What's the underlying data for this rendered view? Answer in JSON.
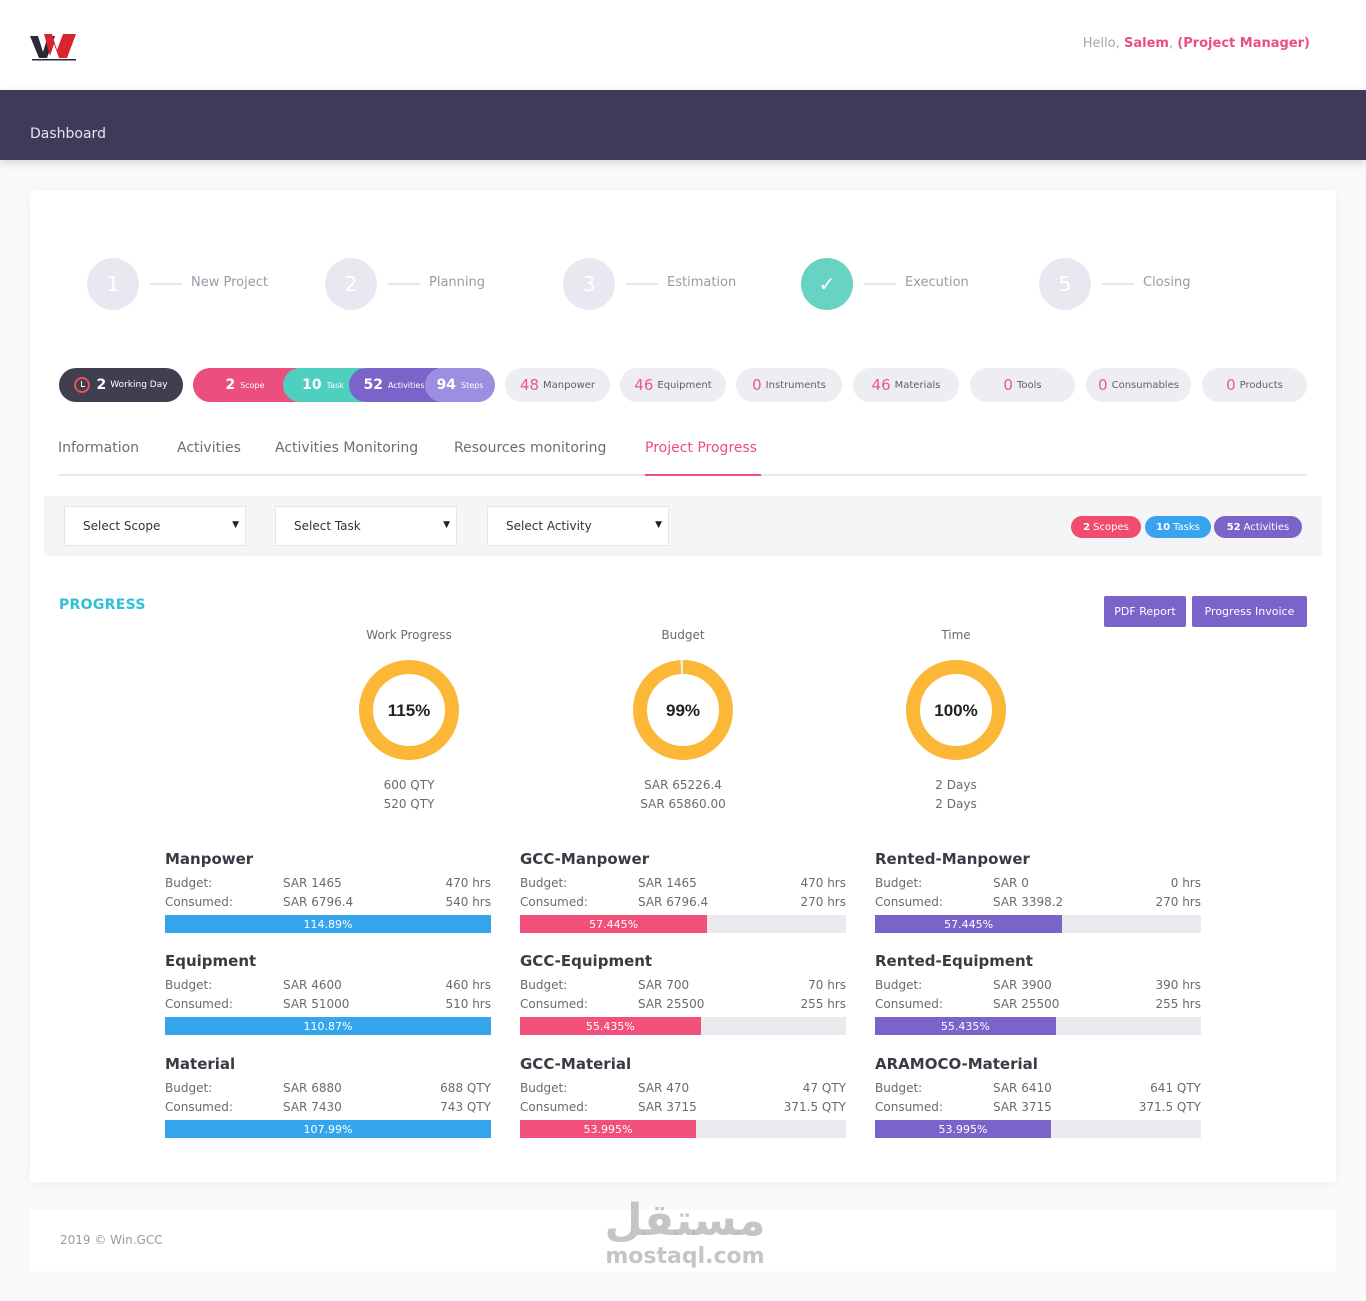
{
  "header": {
    "greeting": "Hello,",
    "user_name": "Salem",
    "separator": ",",
    "role": "(Project Manager)",
    "brand_colors": {
      "red": "#d9232d",
      "dark": "#2a2a35"
    }
  },
  "nav": {
    "dashboard": "Dashboard"
  },
  "stepper": [
    {
      "num": "1",
      "label": "New Project",
      "done": false
    },
    {
      "num": "2",
      "label": "Planning",
      "done": false
    },
    {
      "num": "3",
      "label": "Estimation",
      "done": false
    },
    {
      "num": "✓",
      "label": "Execution",
      "done": true
    },
    {
      "num": "5",
      "label": "Closing",
      "done": false
    }
  ],
  "summary": {
    "working_day": {
      "num": "2",
      "label": "Working Day"
    },
    "scope": {
      "num": "2",
      "label": "Scope",
      "color": "#ea4f7d"
    },
    "task": {
      "num": "10",
      "label": "Task",
      "color": "#4fcfbf"
    },
    "activities": {
      "num": "52",
      "label": "Activities",
      "color": "#7a63c9"
    },
    "steps": {
      "num": "94",
      "label": "Steps",
      "color": "#9d8ee0"
    },
    "resources": [
      {
        "num": "48",
        "label": "Manpower"
      },
      {
        "num": "46",
        "label": "Equipment"
      },
      {
        "num": "0",
        "label": "Instruments"
      },
      {
        "num": "46",
        "label": "Materials"
      },
      {
        "num": "0",
        "label": "Tools"
      },
      {
        "num": "0",
        "label": "Consumables"
      },
      {
        "num": "0",
        "label": "Products"
      }
    ]
  },
  "tabs": [
    {
      "label": "Information",
      "active": false
    },
    {
      "label": "Activities",
      "active": false
    },
    {
      "label": "Activities Monitoring",
      "active": false
    },
    {
      "label": "Resources monitoring",
      "active": false
    },
    {
      "label": "Project Progress",
      "active": true
    }
  ],
  "filters": {
    "scope": "Select Scope",
    "task": "Select Task",
    "activity": "Select Activity",
    "badges": [
      {
        "num": "2",
        "label": "Scopes",
        "color": "#ef4c6e"
      },
      {
        "num": "10",
        "label": "Tasks",
        "color": "#3aa3f0"
      },
      {
        "num": "52",
        "label": "Activities",
        "color": "#7a63c9"
      }
    ]
  },
  "progress": {
    "title": "PROGRESS",
    "pdf_report": "PDF Report",
    "progress_invoice": "Progress Invoice",
    "gauge_color": "#fbb735",
    "gauges": [
      {
        "title": "Work Progress",
        "value": "115%",
        "fraction": 1.0,
        "line1": "600 QTY",
        "line2": "520 QTY"
      },
      {
        "title": "Budget",
        "value": "99%",
        "fraction": 0.99,
        "line1": "SAR 65226.4",
        "line2": "SAR 65860.00"
      },
      {
        "title": "Time",
        "value": "100%",
        "fraction": 1.0,
        "line1": "2 Days",
        "line2": "2 Days"
      }
    ]
  },
  "resources_grid": [
    {
      "title": "Manpower",
      "budget_label": "Budget:",
      "budget_sar": "SAR 1465",
      "budget_qty": "470 hrs",
      "consumed_label": "Consumed:",
      "consumed_sar": "SAR 6796.4",
      "consumed_qty": "540 hrs",
      "percent": "114.89%",
      "fraction": 1.0,
      "color": "#35a6ee"
    },
    {
      "title": "GCC-Manpower",
      "budget_label": "Budget:",
      "budget_sar": "SAR 1465",
      "budget_qty": "470 hrs",
      "consumed_label": "Consumed:",
      "consumed_sar": "SAR 6796.4",
      "consumed_qty": "270 hrs",
      "percent": "57.445%",
      "fraction": 0.57445,
      "color": "#f0507a"
    },
    {
      "title": "Rented-Manpower",
      "budget_label": "Budget:",
      "budget_sar": "SAR 0",
      "budget_qty": "0 hrs",
      "consumed_label": "Consumed:",
      "consumed_sar": "SAR 3398.2",
      "consumed_qty": "270 hrs",
      "percent": "57.445%",
      "fraction": 0.57445,
      "color": "#7a63c9"
    },
    {
      "title": "Equipment",
      "budget_label": "Budget:",
      "budget_sar": "SAR 4600",
      "budget_qty": "460 hrs",
      "consumed_label": "Consumed:",
      "consumed_sar": "SAR 51000",
      "consumed_qty": "510 hrs",
      "percent": "110.87%",
      "fraction": 1.0,
      "color": "#35a6ee"
    },
    {
      "title": "GCC-Equipment",
      "budget_label": "Budget:",
      "budget_sar": "SAR 700",
      "budget_qty": "70 hrs",
      "consumed_label": "Consumed:",
      "consumed_sar": "SAR 25500",
      "consumed_qty": "255 hrs",
      "percent": "55.435%",
      "fraction": 0.55435,
      "color": "#f0507a"
    },
    {
      "title": "Rented-Equipment",
      "budget_label": "Budget:",
      "budget_sar": "SAR 3900",
      "budget_qty": "390 hrs",
      "consumed_label": "Consumed:",
      "consumed_sar": "SAR 25500",
      "consumed_qty": "255 hrs",
      "percent": "55.435%",
      "fraction": 0.55435,
      "color": "#7a63c9"
    },
    {
      "title": "Material",
      "budget_label": "Budget:",
      "budget_sar": "SAR 6880",
      "budget_qty": "688 QTY",
      "consumed_label": "Consumed:",
      "consumed_sar": "SAR 7430",
      "consumed_qty": "743 QTY",
      "percent": "107.99%",
      "fraction": 1.0,
      "color": "#35a6ee"
    },
    {
      "title": "GCC-Material",
      "budget_label": "Budget:",
      "budget_sar": "SAR 470",
      "budget_qty": "47 QTY",
      "consumed_label": "Consumed:",
      "consumed_sar": "SAR 3715",
      "consumed_qty": "371.5 QTY",
      "percent": "53.995%",
      "fraction": 0.53995,
      "color": "#f0507a"
    },
    {
      "title": "ARAMOCO-Material",
      "budget_label": "Budget:",
      "budget_sar": "SAR 6410",
      "budget_qty": "641 QTY",
      "consumed_label": "Consumed:",
      "consumed_sar": "SAR 3715",
      "consumed_qty": "371.5 QTY",
      "percent": "53.995%",
      "fraction": 0.53995,
      "color": "#7a63c9"
    }
  ],
  "footer": {
    "copyright": "2019 © Win.GCC"
  },
  "watermark": {
    "arabic": "مستقل",
    "latin": "mostaql.com"
  }
}
